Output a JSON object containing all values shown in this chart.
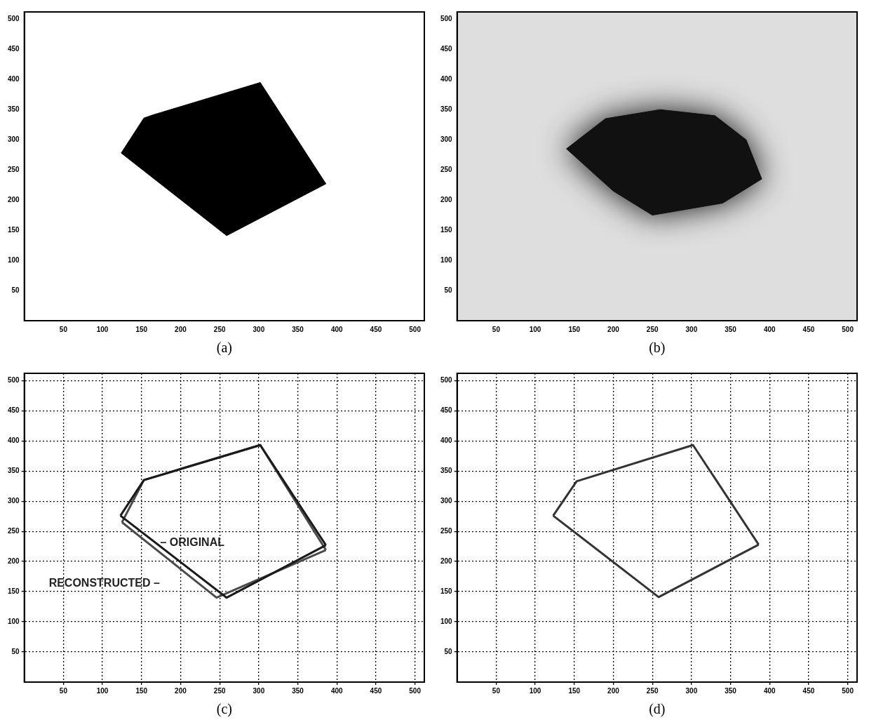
{
  "chart_data": [
    {
      "type": "area",
      "xlabel": "(a)",
      "xlim": [
        0,
        512
      ],
      "ylim": [
        0,
        512
      ],
      "xticks": [
        50,
        100,
        150,
        200,
        250,
        300,
        350,
        400,
        450,
        500
      ],
      "yticks": [
        50,
        100,
        150,
        200,
        250,
        300,
        350,
        400,
        450,
        500
      ],
      "series": [
        {
          "color": "#000000",
          "x": [
            124,
            153,
            164,
            302,
            386,
            259,
            124
          ],
          "values": [
            278,
            336,
            341,
            395,
            227,
            141,
            278
          ]
        }
      ]
    },
    {
      "type": "area",
      "xlabel": "(b)",
      "xlim": [
        0,
        512
      ],
      "ylim": [
        0,
        512
      ],
      "xticks": [
        50,
        100,
        150,
        200,
        250,
        300,
        350,
        400,
        450,
        500
      ],
      "yticks": [
        50,
        100,
        150,
        200,
        250,
        300,
        350,
        400,
        450,
        500
      ],
      "series": [
        {
          "color": "#111111",
          "x": [
            140,
            190,
            260,
            330,
            370,
            390,
            340,
            250,
            200,
            140
          ],
          "values": [
            285,
            335,
            350,
            340,
            300,
            235,
            195,
            175,
            215,
            285
          ]
        }
      ]
    },
    {
      "type": "line",
      "xlabel": "(c)",
      "xlim": [
        0,
        512
      ],
      "ylim": [
        0,
        512
      ],
      "xticks": [
        50,
        100,
        150,
        200,
        250,
        300,
        350,
        400,
        450,
        500
      ],
      "yticks": [
        50,
        100,
        150,
        200,
        250,
        300,
        350,
        400,
        450,
        500
      ],
      "grid": true,
      "series": [
        {
          "color": "#1a1a1a",
          "x": [
            123,
            153,
            302,
            386
          ],
          "values": [
            276,
            335,
            393,
            227
          ]
        },
        {
          "color": "#1a1a1a",
          "x": [
            123,
            259,
            386
          ],
          "values": [
            276,
            140,
            227
          ]
        },
        {
          "color": "#4a4a4a",
          "x": [
            125,
            153,
            302,
            386
          ],
          "values": [
            265,
            335,
            393,
            219
          ]
        },
        {
          "color": "#4a4a4a",
          "x": [
            125,
            246,
            386
          ],
          "values": [
            265,
            140,
            219
          ]
        }
      ],
      "annotations": [
        "– ORIGINAL",
        "RECONSTRUCTED –"
      ]
    },
    {
      "type": "line",
      "xlabel": "(d)",
      "xlim": [
        0,
        512
      ],
      "ylim": [
        0,
        512
      ],
      "xticks": [
        50,
        100,
        150,
        200,
        250,
        300,
        350,
        400,
        450,
        500
      ],
      "yticks": [
        50,
        100,
        150,
        200,
        250,
        300,
        350,
        400,
        450,
        500
      ],
      "grid": true,
      "series": [
        {
          "color": "#333333",
          "x": [
            123,
            153,
            302,
            386
          ],
          "values": [
            276,
            333,
            393,
            228
          ]
        },
        {
          "color": "#333333",
          "x": [
            123,
            258,
            386
          ],
          "values": [
            276,
            141,
            228
          ]
        }
      ]
    }
  ]
}
